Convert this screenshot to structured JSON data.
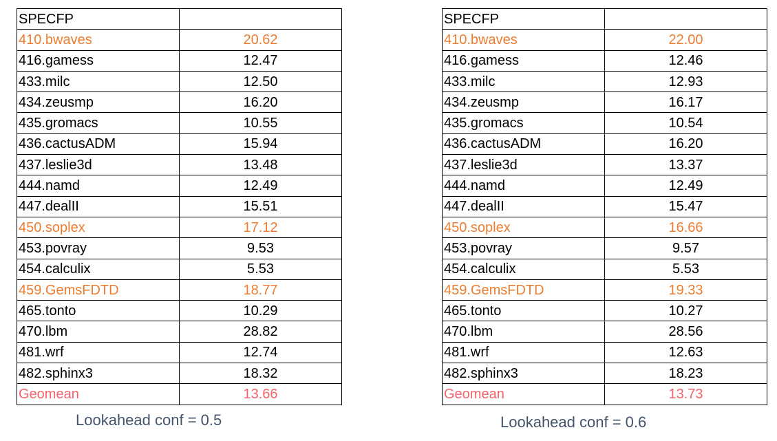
{
  "colors": {
    "text": "#000000",
    "highlight_orange": "#ED7D31",
    "highlight_red": "#F4636B",
    "caption": "#44546A"
  },
  "tables": [
    {
      "header": "SPECFP",
      "caption": "Lookahead conf = 0.5",
      "rows": [
        {
          "name": "410.bwaves",
          "value": "20.62",
          "highlight": "orange"
        },
        {
          "name": "416.gamess",
          "value": "12.47",
          "highlight": "none"
        },
        {
          "name": "433.milc",
          "value": "12.50",
          "highlight": "none"
        },
        {
          "name": "434.zeusmp",
          "value": "16.20",
          "highlight": "none"
        },
        {
          "name": "435.gromacs",
          "value": "10.55",
          "highlight": "none"
        },
        {
          "name": "436.cactusADM",
          "value": "15.94",
          "highlight": "none"
        },
        {
          "name": "437.leslie3d",
          "value": "13.48",
          "highlight": "none"
        },
        {
          "name": "444.namd",
          "value": "12.49",
          "highlight": "none"
        },
        {
          "name": "447.dealII",
          "value": "15.51",
          "highlight": "none"
        },
        {
          "name": "450.soplex",
          "value": "17.12",
          "highlight": "orange"
        },
        {
          "name": "453.povray",
          "value": "9.53",
          "highlight": "none"
        },
        {
          "name": "454.calculix",
          "value": "5.53",
          "highlight": "none"
        },
        {
          "name": "459.GemsFDTD",
          "value": "18.77",
          "highlight": "orange"
        },
        {
          "name": "465.tonto",
          "value": "10.29",
          "highlight": "none"
        },
        {
          "name": "470.lbm",
          "value": "28.82",
          "highlight": "none"
        },
        {
          "name": "481.wrf",
          "value": "12.74",
          "highlight": "none"
        },
        {
          "name": "482.sphinx3",
          "value": "18.32",
          "highlight": "none"
        },
        {
          "name": "Geomean",
          "value": "13.66",
          "highlight": "red"
        }
      ]
    },
    {
      "header": "SPECFP",
      "caption": "Lookahead conf = 0.6",
      "rows": [
        {
          "name": "410.bwaves",
          "value": "22.00",
          "highlight": "orange"
        },
        {
          "name": "416.gamess",
          "value": "12.46",
          "highlight": "none"
        },
        {
          "name": "433.milc",
          "value": "12.93",
          "highlight": "none"
        },
        {
          "name": "434.zeusmp",
          "value": "16.17",
          "highlight": "none"
        },
        {
          "name": "435.gromacs",
          "value": "10.54",
          "highlight": "none"
        },
        {
          "name": "436.cactusADM",
          "value": "16.20",
          "highlight": "none"
        },
        {
          "name": "437.leslie3d",
          "value": "13.37",
          "highlight": "none"
        },
        {
          "name": "444.namd",
          "value": "12.49",
          "highlight": "none"
        },
        {
          "name": "447.dealII",
          "value": "15.47",
          "highlight": "none"
        },
        {
          "name": "450.soplex",
          "value": "16.66",
          "highlight": "orange"
        },
        {
          "name": "453.povray",
          "value": "9.57",
          "highlight": "none"
        },
        {
          "name": "454.calculix",
          "value": "5.53",
          "highlight": "none"
        },
        {
          "name": "459.GemsFDTD",
          "value": "19.33",
          "highlight": "orange"
        },
        {
          "name": "465.tonto",
          "value": "10.27",
          "highlight": "none"
        },
        {
          "name": "470.lbm",
          "value": "28.56",
          "highlight": "none"
        },
        {
          "name": "481.wrf",
          "value": "12.63",
          "highlight": "none"
        },
        {
          "name": "482.sphinx3",
          "value": "18.23",
          "highlight": "none"
        },
        {
          "name": "Geomean",
          "value": "13.73",
          "highlight": "red"
        }
      ]
    }
  ]
}
